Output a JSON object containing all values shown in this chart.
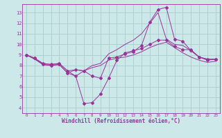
{
  "bg_color": "#cce8e8",
  "line_color": "#993399",
  "grid_color": "#aacccc",
  "xlabel": "Windchill (Refroidissement éolien,°C)",
  "xlabel_fontsize": 5.5,
  "tick_color": "#993399",
  "yticks": [
    4,
    5,
    6,
    7,
    8,
    9,
    10,
    11,
    12,
    13
  ],
  "xticks": [
    0,
    1,
    2,
    3,
    4,
    5,
    6,
    7,
    8,
    9,
    10,
    11,
    12,
    13,
    14,
    15,
    16,
    17,
    18,
    19,
    20,
    21,
    22,
    23
  ],
  "ylim": [
    3.5,
    13.8
  ],
  "xlim": [
    -0.5,
    23.5
  ],
  "lines": [
    {
      "x": [
        0,
        1,
        2,
        3,
        4,
        5,
        6,
        7,
        8,
        9,
        10,
        11,
        12,
        13,
        14,
        15,
        16,
        17,
        18,
        19,
        20,
        21,
        22,
        23
      ],
      "y": [
        9.0,
        8.7,
        8.2,
        8.1,
        8.2,
        7.5,
        7.0,
        4.4,
        4.5,
        5.3,
        6.8,
        8.5,
        9.2,
        9.4,
        9.6,
        10.0,
        10.4,
        10.4,
        9.8,
        9.5,
        9.5,
        8.8,
        8.6,
        8.6
      ],
      "marker": true
    },
    {
      "x": [
        0,
        1,
        2,
        3,
        4,
        5,
        6,
        7,
        8,
        9,
        10,
        11,
        12,
        13,
        14,
        15,
        16,
        17,
        18,
        19,
        20,
        21,
        22,
        23
      ],
      "y": [
        9.0,
        8.7,
        8.1,
        8.0,
        8.1,
        7.3,
        7.6,
        7.5,
        7.0,
        6.8,
        8.7,
        8.8,
        9.1,
        9.3,
        9.9,
        12.1,
        13.3,
        13.5,
        10.5,
        10.3,
        9.4,
        8.8,
        8.5,
        8.6
      ],
      "marker": true
    },
    {
      "x": [
        0,
        1,
        2,
        3,
        4,
        5,
        6,
        7,
        8,
        9,
        10,
        11,
        12,
        13,
        14,
        15,
        16,
        17,
        18,
        19,
        20,
        21,
        22,
        23
      ],
      "y": [
        9.0,
        8.7,
        8.2,
        8.1,
        8.2,
        7.5,
        7.6,
        7.5,
        8.0,
        8.2,
        9.1,
        9.5,
        10.0,
        10.4,
        11.0,
        12.0,
        13.0,
        10.5,
        10.0,
        9.9,
        9.4,
        8.8,
        8.6,
        8.6
      ],
      "marker": false
    },
    {
      "x": [
        0,
        1,
        2,
        3,
        4,
        5,
        6,
        7,
        8,
        9,
        10,
        11,
        12,
        13,
        14,
        15,
        16,
        17,
        18,
        19,
        20,
        21,
        22,
        23
      ],
      "y": [
        9.0,
        8.6,
        8.1,
        8.0,
        8.1,
        7.3,
        7.0,
        7.5,
        7.8,
        8.0,
        8.5,
        8.7,
        8.8,
        9.0,
        9.3,
        9.7,
        10.0,
        10.2,
        9.7,
        9.2,
        8.8,
        8.5,
        8.3,
        8.4
      ],
      "marker": false
    }
  ]
}
